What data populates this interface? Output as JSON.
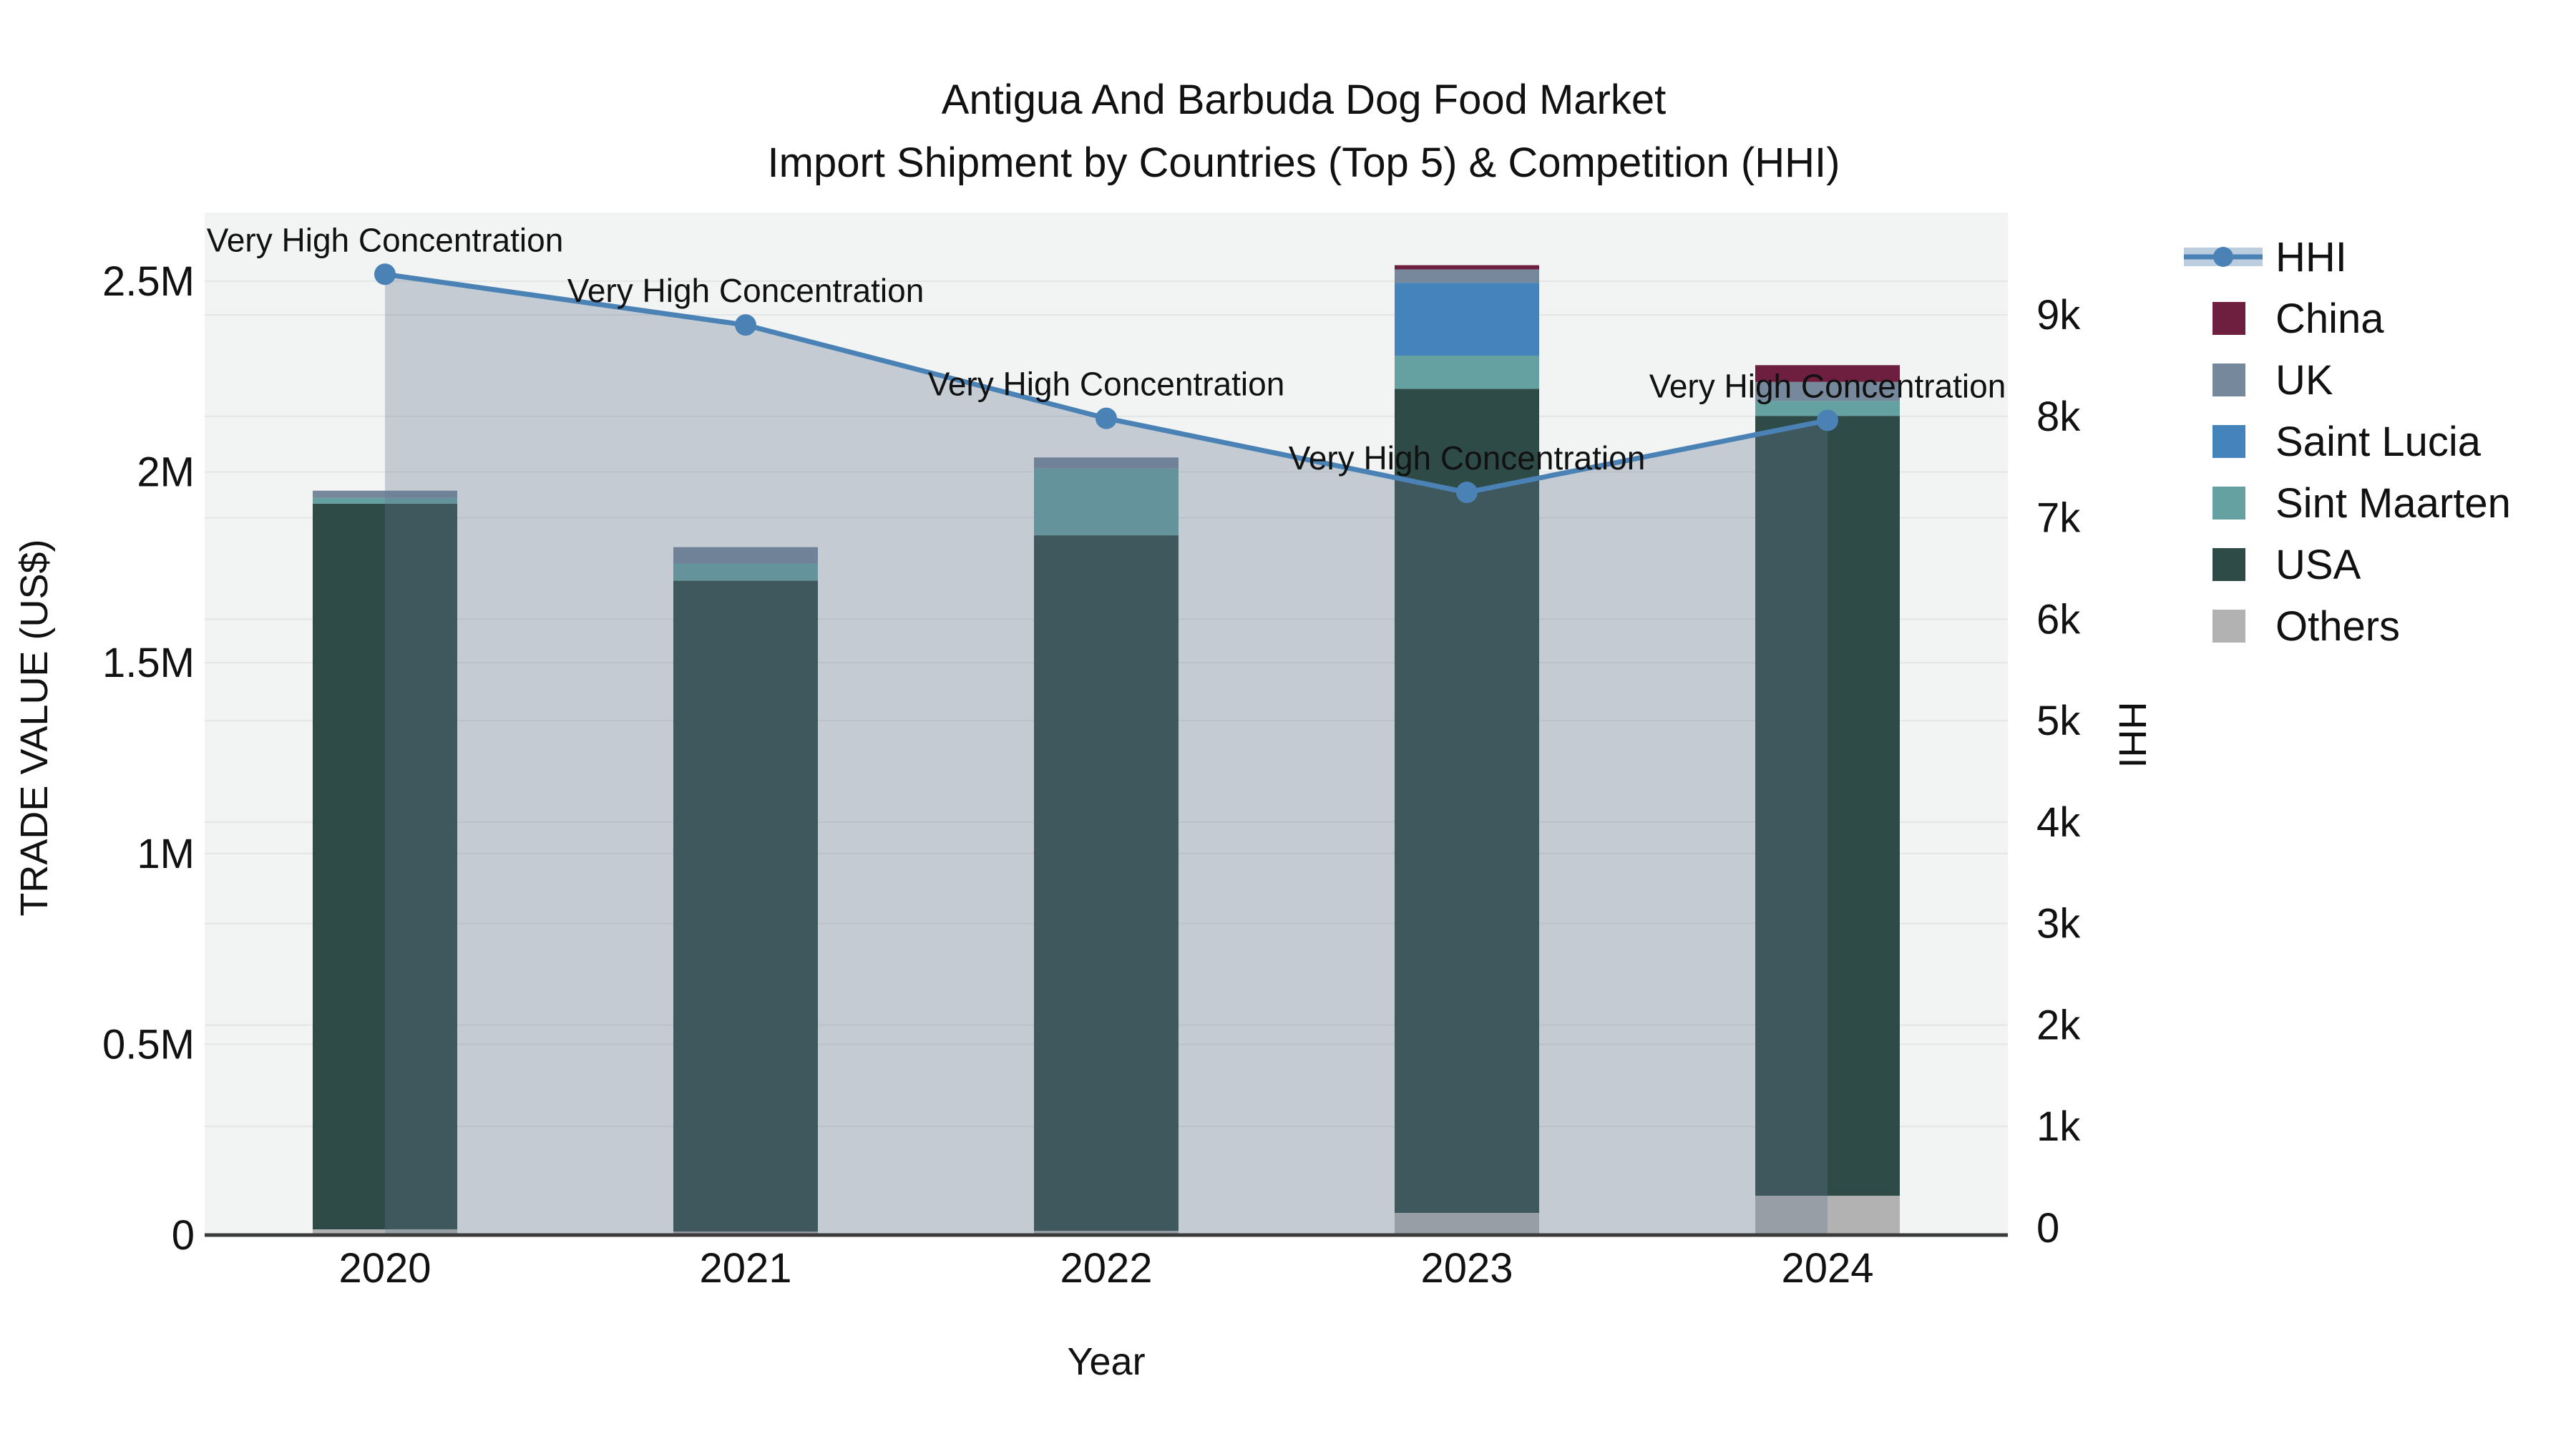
{
  "title": {
    "line1": "Antigua And Barbuda Dog Food Market",
    "line2": "Import Shipment by Countries (Top 5) & Competition (HHI)"
  },
  "axes": {
    "left_title": "TRADE VALUE (US$)",
    "right_title": "HHI",
    "x_title": "Year"
  },
  "chart_data": {
    "type": "bar+line",
    "title": "Antigua And Barbuda Dog Food Market Import Shipment by Countries (Top 5) & Competition (HHI)",
    "xlabel": "Year",
    "ylabel_left": "TRADE VALUE (US$)",
    "ylabel_right": "HHI",
    "categories": [
      "2020",
      "2021",
      "2022",
      "2023",
      "2024"
    ],
    "bar_series": [
      {
        "name": "Others",
        "color": "#b2b2b2",
        "values": [
          15000,
          9000,
          11000,
          58000,
          103000
        ]
      },
      {
        "name": "USA",
        "color": "#2e4b47",
        "values": [
          1902000,
          1706000,
          1823000,
          2160000,
          2044000
        ]
      },
      {
        "name": "Sint Maarten",
        "color": "#66a1a1",
        "values": [
          15000,
          45000,
          175000,
          87000,
          39000
        ]
      },
      {
        "name": "Saint Lucia",
        "color": "#4583bd",
        "values": [
          0,
          0,
          0,
          191000,
          0
        ]
      },
      {
        "name": "UK",
        "color": "#76889b",
        "values": [
          19000,
          43000,
          29000,
          35000,
          50000
        ]
      },
      {
        "name": "China",
        "color": "#6e1f3f",
        "values": [
          0,
          0,
          0,
          11000,
          44000
        ]
      }
    ],
    "bar_totals": [
      1951000,
      1803000,
      2038000,
      2542000,
      2280000
    ],
    "line_series": {
      "name": "HHI",
      "color": "#4a82b6",
      "area_fill": "rgba(100,119,143,0.32)",
      "values": [
        9400,
        8900,
        7980,
        7250,
        7960
      ]
    },
    "annotations": [
      "Very High Concentration",
      "Very High Concentration",
      "Very High Concentration",
      "Very High Concentration",
      "Very High Concentration"
    ],
    "left_ticks": {
      "values": [
        0,
        500000,
        1000000,
        1500000,
        2000000,
        2500000
      ],
      "labels": [
        "0",
        "0.5M",
        "1M",
        "1.5M",
        "2M",
        "2.5M"
      ]
    },
    "right_ticks": {
      "values": [
        0,
        1000,
        2000,
        3000,
        4000,
        5000,
        6000,
        7000,
        8000,
        9000
      ],
      "labels": [
        "0",
        "1k",
        "2k",
        "3k",
        "4k",
        "5k",
        "6k",
        "7k",
        "8k",
        "9k"
      ]
    },
    "ylim_left": [
      0,
      2680000
    ],
    "ylim_right": [
      0,
      9520
    ],
    "grid": true,
    "legend_position": "right-top",
    "legend": [
      {
        "label": "HHI",
        "kind": "line",
        "color": "#4a82b6"
      },
      {
        "label": "China",
        "kind": "swatch",
        "color": "#6e1f3f"
      },
      {
        "label": "UK",
        "kind": "swatch",
        "color": "#76889b"
      },
      {
        "label": "Saint Lucia",
        "kind": "swatch",
        "color": "#4583bd"
      },
      {
        "label": "Sint Maarten",
        "kind": "swatch",
        "color": "#66a1a1"
      },
      {
        "label": "USA",
        "kind": "swatch",
        "color": "#2e4b47"
      },
      {
        "label": "Others",
        "kind": "swatch",
        "color": "#b2b2b2"
      }
    ],
    "colors": {
      "plot_bg": "#f2f3f3",
      "grid_line": "#e4e5e7",
      "axis_line": "#3b3b3b",
      "text": "#111111",
      "hhi_band": "#bccde0"
    }
  }
}
